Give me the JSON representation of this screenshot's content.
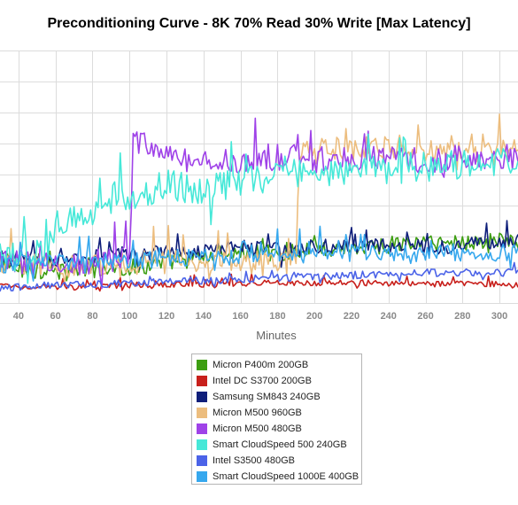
{
  "chart_data": {
    "type": "line",
    "title": "Preconditioning Curve - 8K 70% Read 30% Write [Max Latency]",
    "xlabel": "Minutes",
    "ylabel": "",
    "xlim": [
      30,
      310
    ],
    "ylim": [
      0,
      1
    ],
    "x_ticks": [
      40,
      60,
      80,
      100,
      120,
      140,
      160,
      180,
      200,
      220,
      240,
      260,
      280,
      300
    ],
    "grid": true,
    "legend_position": "bottom-center",
    "series": [
      {
        "name": "Micron P400m 200GB",
        "color": "#3d9e12",
        "points": [
          [
            30,
            0.14
          ],
          [
            60,
            0.12
          ],
          [
            100,
            0.14
          ],
          [
            120,
            0.16
          ],
          [
            140,
            0.18
          ],
          [
            160,
            0.2
          ],
          [
            180,
            0.2
          ],
          [
            200,
            0.22
          ],
          [
            220,
            0.22
          ],
          [
            240,
            0.23
          ],
          [
            260,
            0.24
          ],
          [
            280,
            0.24
          ],
          [
            300,
            0.25
          ],
          [
            310,
            0.24
          ]
        ]
      },
      {
        "name": "Intel DC S3700 200GB",
        "color": "#c8201c",
        "points": [
          [
            30,
            0.07
          ],
          [
            60,
            0.06
          ],
          [
            100,
            0.07
          ],
          [
            140,
            0.075
          ],
          [
            180,
            0.08
          ],
          [
            220,
            0.08
          ],
          [
            260,
            0.075
          ],
          [
            300,
            0.075
          ],
          [
            310,
            0.07
          ]
        ]
      },
      {
        "name": "Samsung SM843 240GB",
        "color": "#0f1f7a",
        "points": [
          [
            30,
            0.18
          ],
          [
            60,
            0.17
          ],
          [
            80,
            0.18
          ],
          [
            100,
            0.2
          ],
          [
            120,
            0.2
          ],
          [
            140,
            0.21
          ],
          [
            160,
            0.22
          ],
          [
            180,
            0.21
          ],
          [
            200,
            0.22
          ],
          [
            220,
            0.23
          ],
          [
            240,
            0.23
          ],
          [
            260,
            0.22
          ],
          [
            280,
            0.23
          ],
          [
            300,
            0.24
          ],
          [
            310,
            0.25
          ]
        ]
      },
      {
        "name": "Micron M500 960GB",
        "color": "#ecbd7e",
        "points": [
          [
            30,
            0.16
          ],
          [
            60,
            0.15
          ],
          [
            100,
            0.16
          ],
          [
            140,
            0.17
          ],
          [
            180,
            0.15
          ],
          [
            190,
            0.16
          ],
          [
            192,
            0.58
          ],
          [
            200,
            0.6
          ],
          [
            220,
            0.62
          ],
          [
            240,
            0.62
          ],
          [
            260,
            0.61
          ],
          [
            280,
            0.62
          ],
          [
            300,
            0.62
          ],
          [
            310,
            0.6
          ]
        ]
      },
      {
        "name": "Micron M500 480GB",
        "color": "#9f42e8",
        "points": [
          [
            30,
            0.16
          ],
          [
            60,
            0.16
          ],
          [
            100,
            0.18
          ],
          [
            102,
            0.64
          ],
          [
            110,
            0.62
          ],
          [
            120,
            0.58
          ],
          [
            140,
            0.57
          ],
          [
            160,
            0.56
          ],
          [
            180,
            0.58
          ],
          [
            200,
            0.57
          ],
          [
            220,
            0.57
          ],
          [
            240,
            0.58
          ],
          [
            260,
            0.56
          ],
          [
            280,
            0.58
          ],
          [
            300,
            0.57
          ],
          [
            310,
            0.58
          ]
        ]
      },
      {
        "name": "Smart CloudSpeed 500 240GB",
        "color": "#46e8d8",
        "points": [
          [
            30,
            0.18
          ],
          [
            55,
            0.2
          ],
          [
            60,
            0.32
          ],
          [
            80,
            0.34
          ],
          [
            90,
            0.44
          ],
          [
            100,
            0.42
          ],
          [
            120,
            0.47
          ],
          [
            140,
            0.44
          ],
          [
            160,
            0.48
          ],
          [
            180,
            0.5
          ],
          [
            200,
            0.52
          ],
          [
            220,
            0.53
          ],
          [
            240,
            0.53
          ],
          [
            260,
            0.54
          ],
          [
            280,
            0.55
          ],
          [
            300,
            0.56
          ],
          [
            310,
            0.56
          ]
        ]
      },
      {
        "name": "Intel S3500 480GB",
        "color": "#4b63e8",
        "points": [
          [
            30,
            0.06
          ],
          [
            60,
            0.07
          ],
          [
            100,
            0.08
          ],
          [
            140,
            0.09
          ],
          [
            180,
            0.1
          ],
          [
            220,
            0.11
          ],
          [
            260,
            0.12
          ],
          [
            300,
            0.12
          ],
          [
            310,
            0.12
          ]
        ]
      },
      {
        "name": "Smart CloudSpeed 1000E 400GB",
        "color": "#36a8ee",
        "points": [
          [
            30,
            0.15
          ],
          [
            60,
            0.16
          ],
          [
            100,
            0.17
          ],
          [
            140,
            0.18
          ],
          [
            180,
            0.19
          ],
          [
            220,
            0.2
          ],
          [
            260,
            0.2
          ],
          [
            300,
            0.2
          ],
          [
            310,
            0.2
          ]
        ]
      }
    ]
  }
}
